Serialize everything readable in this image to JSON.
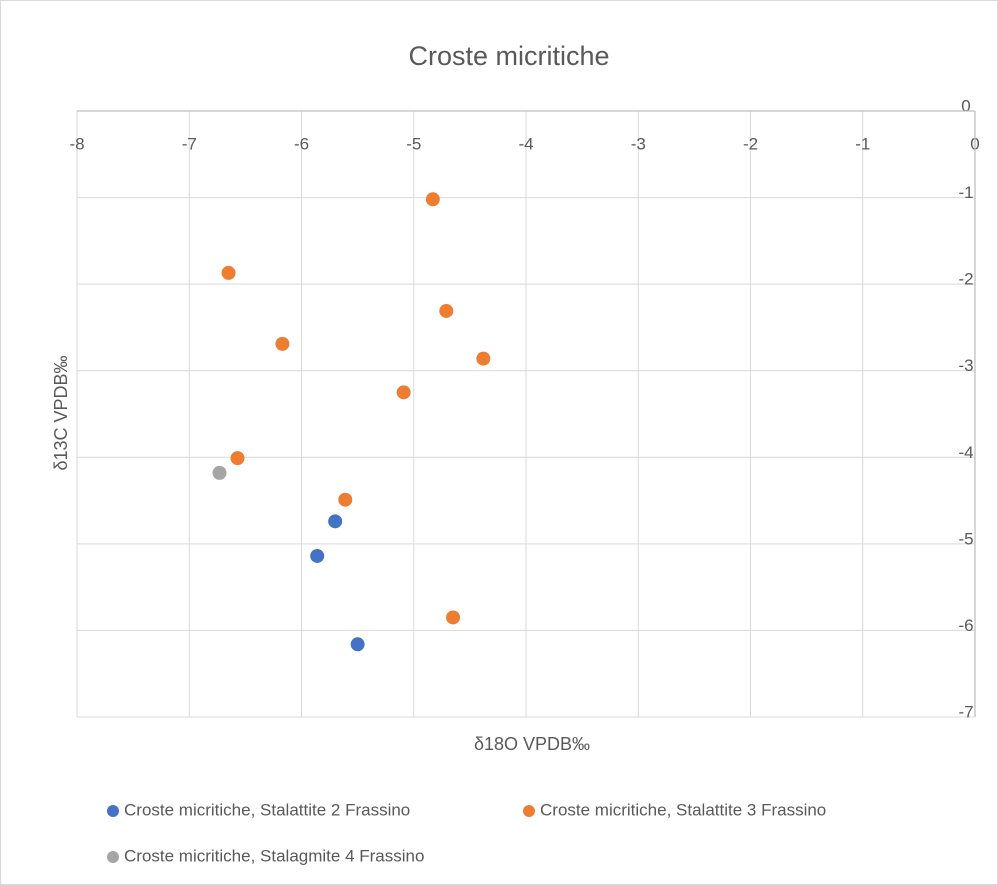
{
  "chart_data": {
    "type": "scatter",
    "title": "Croste micritiche",
    "x_label": "δ18O VPDB‰",
    "y_label": "δ13C VPDB‰",
    "xlim": [
      -8,
      0
    ],
    "ylim": [
      -7,
      0
    ],
    "xticks": [
      -8,
      -7,
      -6,
      -5,
      -4,
      -3,
      -2,
      -1,
      0
    ],
    "yticks": [
      0,
      -1,
      -2,
      -3,
      -4,
      -5,
      -6,
      -7
    ],
    "grid": true,
    "legend": "bottom",
    "series": [
      {
        "name": "Croste micritiche, Stalattite 2 Frassino",
        "color": "#4472c4",
        "x": [
          -5.7,
          -5.86,
          -5.5
        ],
        "values": [
          -4.74,
          -5.14,
          -6.16
        ]
      },
      {
        "name": "Croste micritiche, Stalattite 3 Frassino",
        "color": "#ed7d31",
        "x": [
          -4.83,
          -6.65,
          -4.71,
          -6.17,
          -4.38,
          -5.09,
          -6.57,
          -5.61,
          -4.65
        ],
        "values": [
          -1.02,
          -1.87,
          -2.31,
          -2.69,
          -2.86,
          -3.25,
          -4.01,
          -4.49,
          -5.85
        ]
      },
      {
        "name": "Croste micritiche, Stalagmite 4 Frassino",
        "color": "#a5a5a5",
        "x": [
          -6.73
        ],
        "values": [
          -4.18
        ]
      }
    ]
  }
}
